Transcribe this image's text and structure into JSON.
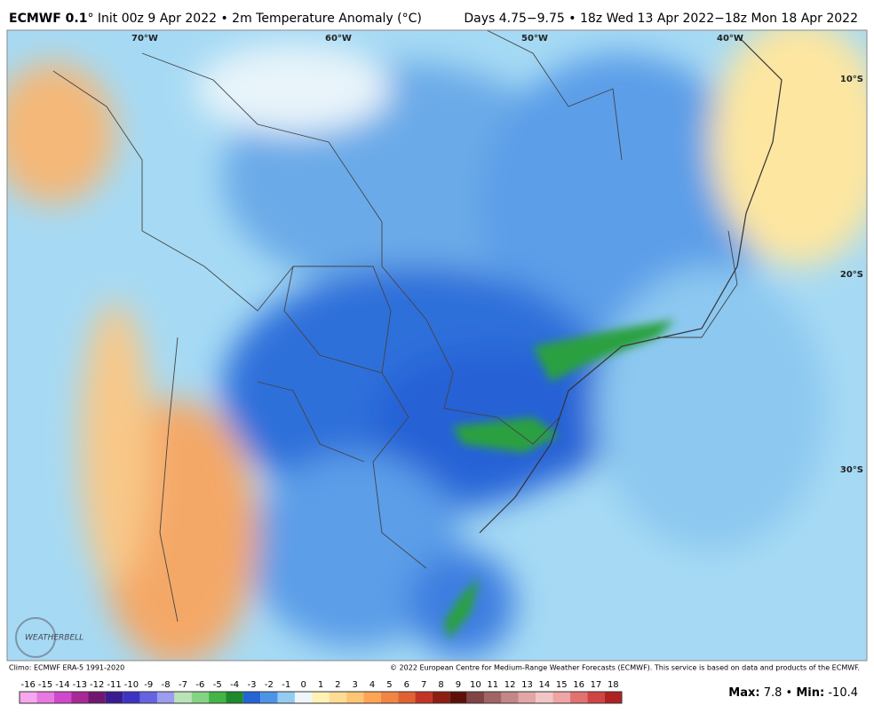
{
  "header": {
    "model": "ECMWF 0.1",
    "title_rest": "° Init 00z 9 Apr 2022 • 2m Temperature Anomaly (°C)",
    "valid": "Days 4.75−9.75 • 18z Wed 13 Apr 2022−18z Mon 18 Apr 2022"
  },
  "map": {
    "longitudes": [
      "70°W",
      "60°W",
      "50°W",
      "40°W"
    ],
    "latitudes": [
      "10°S",
      "20°S",
      "30°S"
    ],
    "watermark": "WEATHERBELL"
  },
  "footer": {
    "climo": "Climo: ECMWF ERA-5 1991-2020",
    "copyright": "© 2022 European Centre for Medium-Range Weather Forecasts (ECMWF). This service is based on data and products of the ECMWF.",
    "max_label": "Max:",
    "max": 7.8,
    "separator": "•",
    "min_label": "Min:",
    "min": -10.4
  },
  "colorbar": {
    "ticks": [
      -16,
      -15,
      -14,
      -13,
      -12,
      -11,
      -10,
      -9,
      -8,
      -7,
      -6,
      -5,
      -4,
      -3,
      -2,
      -1,
      0,
      1,
      2,
      3,
      4,
      5,
      6,
      7,
      8,
      9,
      10,
      11,
      12,
      13,
      14,
      15,
      16,
      17,
      18
    ],
    "colors": [
      "#f5a8ef",
      "#e878e2",
      "#d048cc",
      "#a82898",
      "#701870",
      "#3a1c90",
      "#3c34c0",
      "#6464e0",
      "#9c9cf0",
      "#b8e4b8",
      "#84d484",
      "#44b444",
      "#1e8a2a",
      "#2464d4",
      "#4c94e8",
      "#94cbf2",
      "#eef6fa",
      "#fff2b4",
      "#ffdc94",
      "#ffc474",
      "#ffa454",
      "#f28444",
      "#e06232",
      "#c23424",
      "#8e1e12",
      "#5e1008",
      "#804444",
      "#a06464",
      "#c48686",
      "#e2a6a6",
      "#f2c6c6",
      "#f0a4a4",
      "#e27272",
      "#d04444",
      "#b02222"
    ]
  }
}
